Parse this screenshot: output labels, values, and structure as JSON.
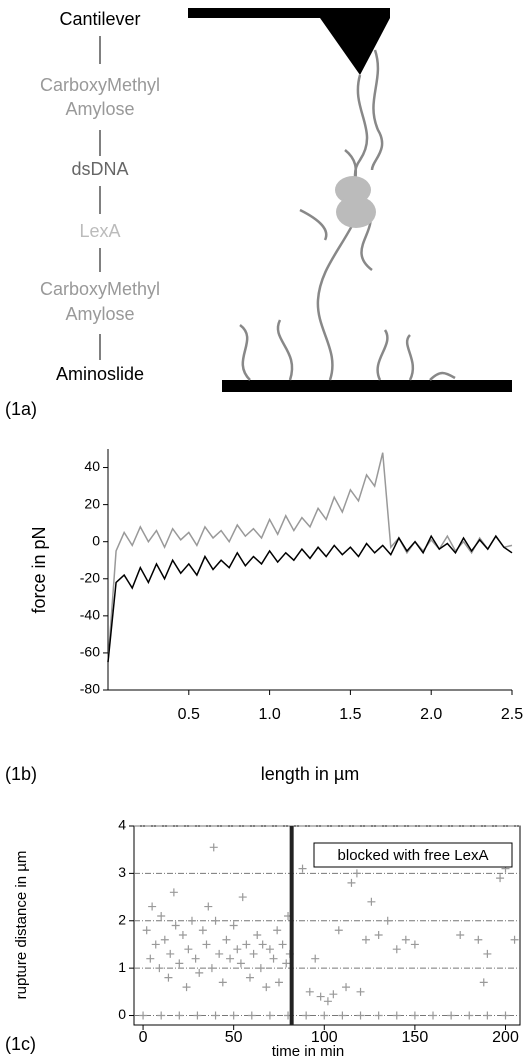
{
  "diagram": {
    "labels": [
      "Cantilever",
      "CarboxyMethyl",
      "Amylose",
      "dsDNA",
      "LexA",
      "CarboxyMethyl",
      "Amylose",
      "Aminoslide"
    ],
    "panel_label": "(1a)"
  },
  "chart_data": [
    {
      "type": "line",
      "panel_label": "(1b)",
      "xlabel": "length in µm",
      "ylabel": "force in pN",
      "x": [
        0,
        0.05,
        0.1,
        0.15,
        0.2,
        0.25,
        0.3,
        0.35,
        0.4,
        0.45,
        0.5,
        0.55,
        0.6,
        0.65,
        0.7,
        0.75,
        0.8,
        0.85,
        0.9,
        0.95,
        1.0,
        1.05,
        1.1,
        1.15,
        1.2,
        1.25,
        1.3,
        1.35,
        1.4,
        1.45,
        1.5,
        1.55,
        1.6,
        1.65,
        1.7,
        1.75,
        1.8,
        1.85,
        1.9,
        1.95,
        2.0,
        2.05,
        2.1,
        2.15,
        2.2,
        2.25,
        2.3,
        2.35,
        2.4,
        2.45,
        2.5
      ],
      "series": [
        {
          "color": "#999999",
          "values": [
            -65,
            -5,
            5,
            -2,
            8,
            0,
            6,
            -3,
            7,
            1,
            5,
            -2,
            8,
            2,
            6,
            0,
            9,
            3,
            7,
            2,
            12,
            4,
            14,
            6,
            13,
            8,
            18,
            12,
            24,
            16,
            28,
            22,
            36,
            30,
            48,
            -3,
            2,
            -6,
            0,
            -5,
            1,
            -4,
            3,
            -5,
            0,
            -6,
            2,
            -4,
            3,
            -3,
            -2
          ]
        },
        {
          "color": "#000000",
          "values": [
            -65,
            -22,
            -18,
            -25,
            -14,
            -22,
            -12,
            -20,
            -10,
            -17,
            -12,
            -18,
            -8,
            -15,
            -10,
            -14,
            -6,
            -13,
            -8,
            -12,
            -5,
            -11,
            -6,
            -10,
            -4,
            -9,
            -3,
            -8,
            -2,
            -7,
            -3,
            -8,
            -1,
            -6,
            -2,
            -7,
            2,
            -5,
            0,
            -6,
            3,
            -4,
            -1,
            -6,
            2,
            -5,
            1,
            -4,
            3,
            -3,
            -6
          ]
        }
      ],
      "xlim": [
        0,
        2.5
      ],
      "ylim": [
        -80,
        50
      ],
      "xticks": [
        0.5,
        {
          "value": 1.0,
          "label": "1.0"
        },
        1.5,
        {
          "value": 2.0,
          "label": "2.0"
        },
        2.5
      ],
      "yticks": [
        40,
        20,
        0,
        -20,
        -40,
        -60,
        -80
      ],
      "grid": false
    },
    {
      "type": "scatter",
      "panel_label": "(1c)",
      "xlabel": "time in min",
      "ylabel": "rupture distance in µm",
      "color": "#999999",
      "marker_x": 82,
      "marker_label": "blocked with free LexA",
      "x": [
        2,
        4,
        5,
        7,
        9,
        10,
        12,
        14,
        15,
        17,
        18,
        20,
        22,
        24,
        25,
        27,
        29,
        31,
        33,
        35,
        36,
        38,
        39,
        40,
        42,
        44,
        46,
        48,
        50,
        52,
        54,
        55,
        57,
        59,
        61,
        63,
        65,
        66,
        68,
        70,
        72,
        74,
        75,
        77,
        79,
        80,
        81,
        88,
        92,
        95,
        98,
        102,
        105,
        108,
        112,
        115,
        118,
        120,
        123,
        126,
        130,
        135,
        140,
        145,
        150,
        175,
        185,
        188,
        190,
        197,
        200,
        205,
        0,
        10,
        20,
        30,
        40,
        50,
        60,
        70,
        80,
        90,
        100,
        110,
        120,
        130,
        140,
        150,
        160,
        170,
        180,
        190,
        200
      ],
      "y": [
        1.8,
        1.2,
        2.3,
        1.5,
        1.0,
        2.1,
        1.6,
        0.8,
        1.3,
        2.6,
        1.9,
        1.1,
        1.7,
        0.6,
        1.4,
        2.0,
        1.2,
        0.9,
        1.8,
        1.5,
        2.3,
        1.0,
        3.55,
        2.0,
        1.3,
        0.7,
        1.6,
        1.2,
        1.9,
        1.4,
        1.1,
        2.5,
        1.5,
        0.8,
        1.3,
        1.7,
        1.0,
        1.5,
        0.6,
        1.4,
        1.2,
        1.8,
        0.7,
        1.5,
        1.1,
        2.1,
        1.3,
        3.1,
        0.5,
        1.2,
        0.4,
        0.3,
        0.45,
        1.8,
        0.6,
        2.8,
        3.0,
        0.5,
        1.6,
        2.4,
        1.7,
        2.0,
        1.4,
        1.6,
        1.5,
        1.7,
        1.6,
        0.7,
        1.3,
        2.9,
        3.1,
        1.6,
        0,
        0,
        0,
        0,
        0,
        0,
        0,
        0,
        0,
        0,
        0,
        0,
        0,
        0,
        0,
        0,
        0,
        0,
        0,
        0,
        0
      ],
      "xlim": [
        -5,
        208
      ],
      "ylim": [
        -0.2,
        4
      ],
      "xticks": [
        0,
        50,
        100,
        150,
        200
      ],
      "yticks": [
        0,
        1,
        2,
        3,
        4
      ],
      "grid": true
    }
  ]
}
